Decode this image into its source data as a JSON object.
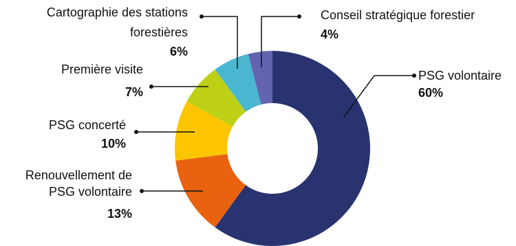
{
  "chart_data": {
    "type": "pie",
    "subtype": "donut",
    "categories": [
      "PSG volontaire",
      "Renouvellement de PSG volontaire",
      "PSG concerté",
      "Première visite",
      "Cartographie des stations forestières",
      "Conseil stratégique forestier"
    ],
    "values": [
      60,
      13,
      10,
      7,
      6,
      4
    ],
    "value_labels": [
      "60%",
      "13%",
      "10%",
      "7%",
      "6%",
      "4%"
    ],
    "colors": [
      "#283370",
      "#E8620F",
      "#FCC500",
      "#BDD016",
      "#4BB6CF",
      "#6264B0"
    ],
    "label_lines": [
      [
        "PSG volontaire"
      ],
      [
        "Renouvellement de",
        "PSG volontaire"
      ],
      [
        "PSG concerté"
      ],
      [
        "Première visite"
      ],
      [
        "Cartographie des stations",
        "forestières"
      ],
      [
        "Conseil stratégique forestier"
      ]
    ],
    "title": ""
  }
}
